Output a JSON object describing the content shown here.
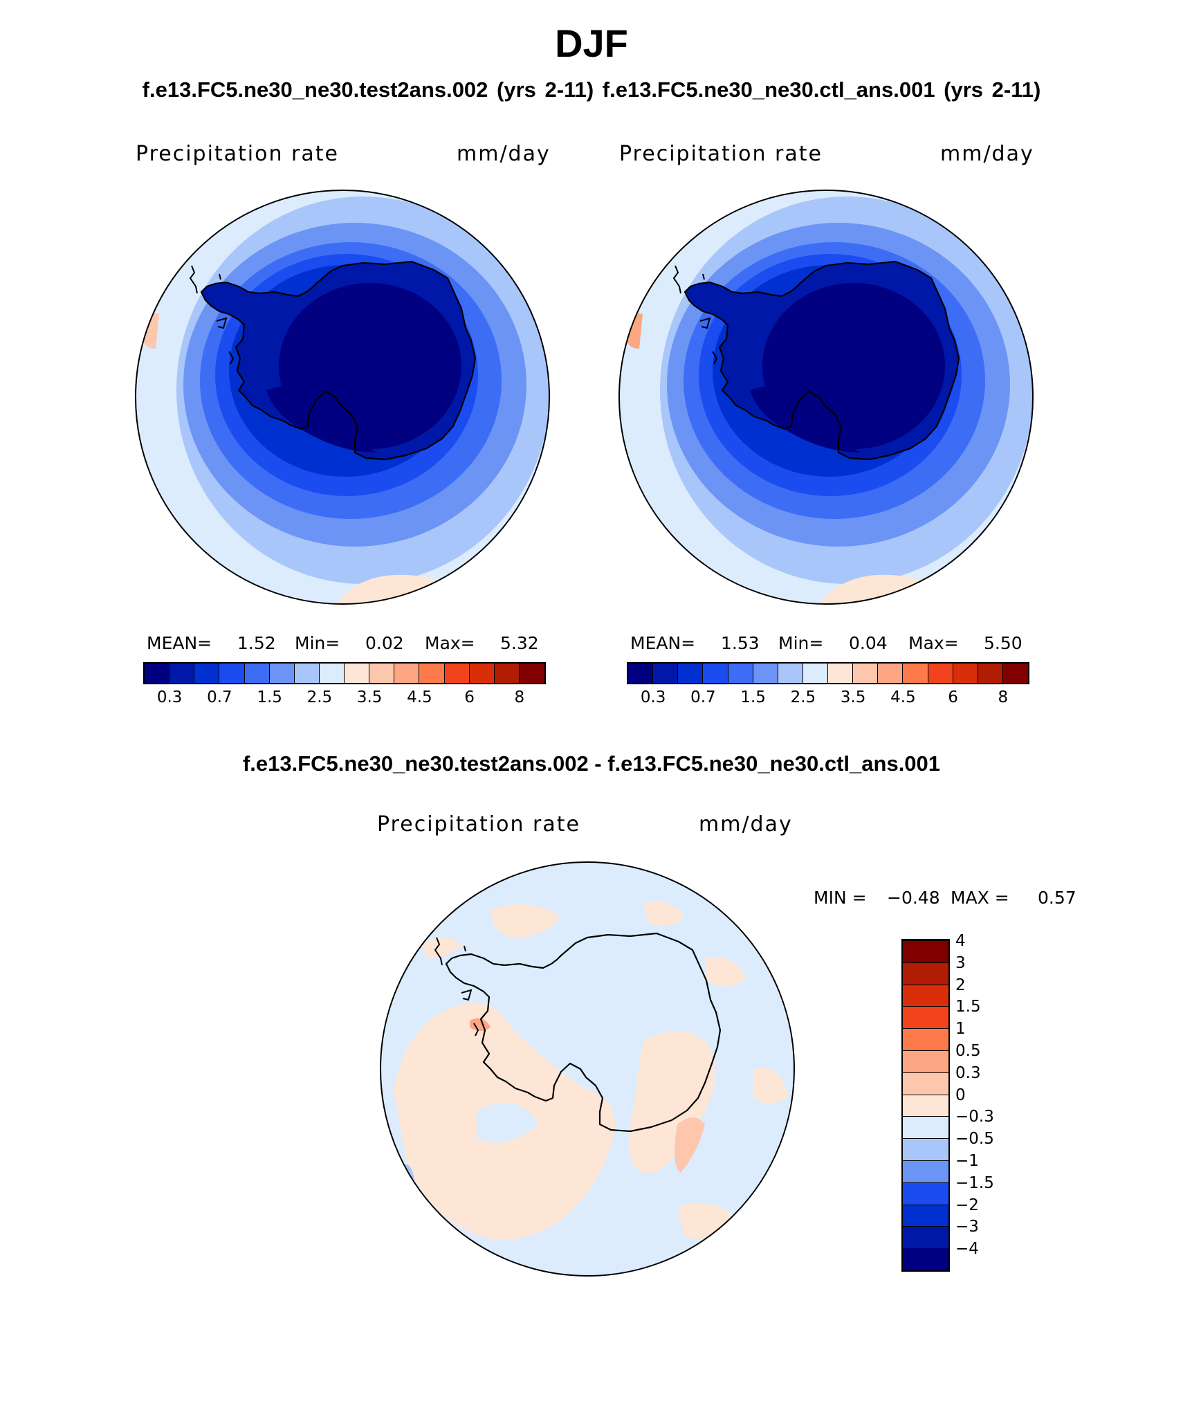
{
  "header": {
    "title": "DJF",
    "subtitle": "f.e13.FC5.ne30_ne30.test2ans.002 (yrs 2-11)   f.e13.FC5.ne30_ne30.ctl_ans.001 (yrs 2-11)"
  },
  "panels": [
    {
      "variable": "Precipitation rate",
      "units": "mm/day",
      "stats": {
        "mean_label": "MEAN=",
        "mean": "1.52",
        "min_label": "Min=",
        "min": "0.02",
        "max_label": "Max=",
        "max": "5.32"
      }
    },
    {
      "variable": "Precipitation rate",
      "units": "mm/day",
      "stats": {
        "mean_label": "MEAN=",
        "mean": "1.53",
        "min_label": "Min=",
        "min": "0.04",
        "max_label": "Max=",
        "max": "5.50"
      }
    }
  ],
  "difference": {
    "title": "f.e13.FC5.ne30_ne30.test2ans.002 - f.e13.FC5.ne30_ne30.ctl_ans.001",
    "variable": "Precipitation rate",
    "units": "mm/day",
    "min_label": "MIN =",
    "min": "−0.48",
    "max_label": "MAX =",
    "max": "0.57"
  },
  "field_colorbar": {
    "colors": [
      "#000080",
      "#0018a8",
      "#0030d0",
      "#1a4cf0",
      "#3d6cf5",
      "#6b94f5",
      "#a9c6fa",
      "#dcecfd",
      "#fde6d6",
      "#fcc7ad",
      "#fca683",
      "#fd7a4a",
      "#f2441c",
      "#d92e0a",
      "#b01c04",
      "#800000"
    ],
    "tick_labels": [
      "0.3",
      "0.7",
      "1.5",
      "2.5",
      "3.5",
      "4.5",
      "6",
      "8"
    ]
  },
  "diff_colorbar": {
    "colors": [
      "#000080",
      "#0018a8",
      "#0030d0",
      "#1a4cf0",
      "#6b94f5",
      "#a9c6fa",
      "#dcecfd",
      "#fde6d6",
      "#fcc7ad",
      "#fca683",
      "#fd7a4a",
      "#f2441c",
      "#d92e0a",
      "#b01c04",
      "#800000"
    ],
    "tick_labels": [
      "−4",
      "−3",
      "−2",
      "−1.5",
      "−1",
      "−0.5",
      "−0.3",
      "0",
      "0.3",
      "0.5",
      "1",
      "1.5",
      "2",
      "3",
      "4"
    ]
  }
}
